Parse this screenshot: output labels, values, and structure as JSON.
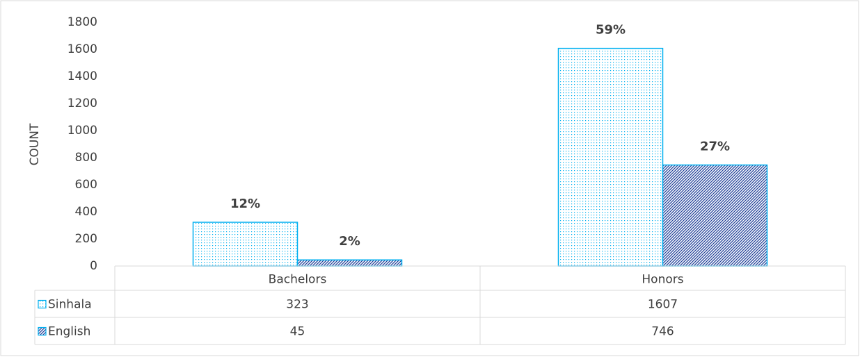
{
  "chart_data": {
    "type": "bar",
    "y_label": "COUNT",
    "categories": [
      "Bachelors",
      "Honors"
    ],
    "series": [
      {
        "name": "Sinhala",
        "color": "#00b0f0",
        "pattern": "dots",
        "values": [
          323,
          1607
        ],
        "percent_labels": [
          "12%",
          "59%"
        ]
      },
      {
        "name": "English",
        "color": "#1f3f99",
        "pattern": "hatch",
        "values": [
          45,
          746
        ],
        "percent_labels": [
          "2%",
          "27%"
        ]
      }
    ],
    "ylim": [
      0,
      1800
    ],
    "yticks": [
      0,
      200,
      400,
      600,
      800,
      1000,
      1200,
      1400,
      1600,
      1800
    ],
    "grid": false,
    "data_table": true
  }
}
